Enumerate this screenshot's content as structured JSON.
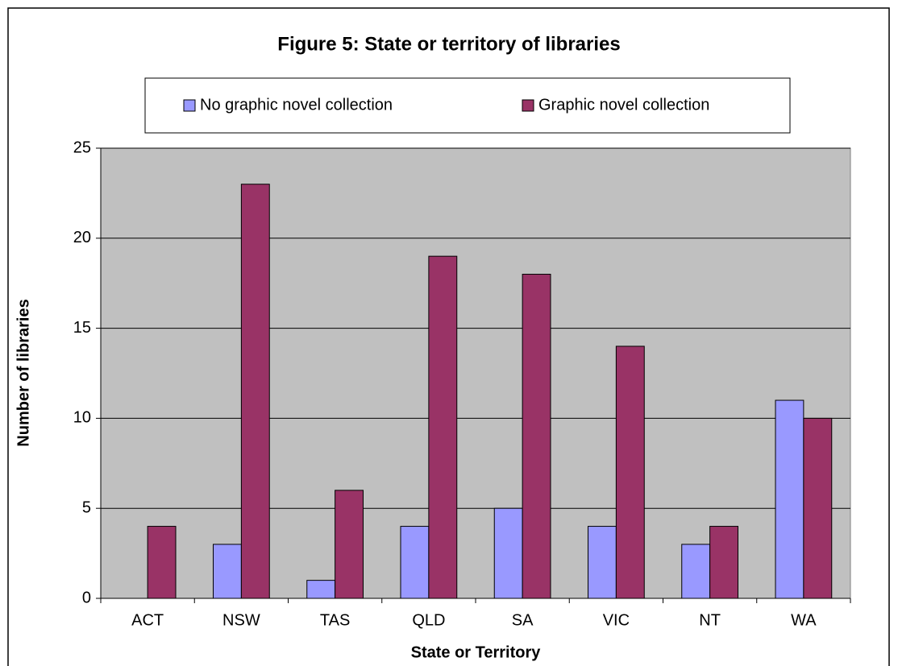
{
  "chart_data": {
    "type": "bar",
    "title": "Figure 5: State or territory of libraries",
    "xlabel": "State or Territory",
    "ylabel": "Number of libraries",
    "categories": [
      "ACT",
      "NSW",
      "TAS",
      "QLD",
      "SA",
      "VIC",
      "NT",
      "WA"
    ],
    "series": [
      {
        "name": "No graphic novel collection",
        "color": "#9999ff",
        "values": [
          0,
          3,
          1,
          4,
          5,
          4,
          3,
          11
        ]
      },
      {
        "name": "Graphic novel collection",
        "color": "#993366",
        "values": [
          4,
          23,
          6,
          19,
          18,
          14,
          4,
          10
        ]
      }
    ],
    "ylim": [
      0,
      25
    ],
    "yticks": [
      0,
      5,
      10,
      15,
      20,
      25
    ],
    "grid": true,
    "legend": "top"
  }
}
